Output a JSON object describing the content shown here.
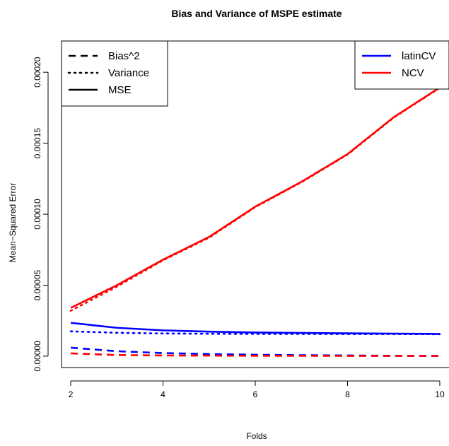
{
  "chart_data": {
    "type": "line",
    "title": "Bias and Variance of MSPE estimate",
    "xlabel": "Folds",
    "ylabel": "Mean−Squared Error",
    "xlim": [
      1.8,
      10.2
    ],
    "ylim": [
      -8e-06,
      0.000222
    ],
    "x": [
      2,
      3,
      4,
      5,
      6,
      7,
      8,
      9,
      10
    ],
    "x_ticks": [
      {
        "value": 2,
        "label": "2"
      },
      {
        "value": 4,
        "label": "4"
      },
      {
        "value": 6,
        "label": "6"
      },
      {
        "value": 8,
        "label": "8"
      },
      {
        "value": 10,
        "label": "10"
      }
    ],
    "y_ticks": [
      {
        "value": 0,
        "label": "0.00000"
      },
      {
        "value": 5e-05,
        "label": "0.00005"
      },
      {
        "value": 0.0001,
        "label": "0.00010"
      },
      {
        "value": 0.00015,
        "label": "0.00015"
      },
      {
        "value": 0.0002,
        "label": "0.00020"
      }
    ],
    "series": [
      {
        "method": "latinCV",
        "metric": "Bias^2",
        "color": "#0000ff",
        "dash": "dashed",
        "values": [
          6e-06,
          3.5e-06,
          2.2e-06,
          1.5e-06,
          1e-06,
          7e-07,
          5e-07,
          3e-07,
          2e-07
        ]
      },
      {
        "method": "latinCV",
        "metric": "Variance",
        "color": "#0000ff",
        "dash": "dotted",
        "values": [
          1.75e-05,
          1.65e-05,
          1.6e-05,
          1.58e-05,
          1.57e-05,
          1.57e-05,
          1.56e-05,
          1.56e-05,
          1.55e-05
        ]
      },
      {
        "method": "latinCV",
        "metric": "MSE",
        "color": "#0000ff",
        "dash": "solid",
        "values": [
          2.35e-05,
          2e-05,
          1.82e-05,
          1.73e-05,
          1.67e-05,
          1.64e-05,
          1.61e-05,
          1.59e-05,
          1.57e-05
        ]
      },
      {
        "method": "NCV",
        "metric": "Bias^2",
        "color": "#ff0000",
        "dash": "dashed",
        "values": [
          2e-06,
          8e-07,
          5e-07,
          4e-07,
          3e-07,
          3e-07,
          2e-07,
          2e-07,
          2e-07
        ]
      },
      {
        "method": "NCV",
        "metric": "Variance",
        "color": "#ff0000",
        "dash": "dotted",
        "values": [
          3.2e-05,
          4.9e-05,
          6.75e-05,
          8.35e-05,
          0.000105,
          0.0001225,
          0.000142,
          0.000168,
          0.000189
        ]
      },
      {
        "method": "NCV",
        "metric": "MSE",
        "color": "#ff0000",
        "dash": "solid",
        "values": [
          3.4e-05,
          5e-05,
          6.8e-05,
          8.4e-05,
          0.0001053,
          0.0001228,
          0.0001423,
          0.0001683,
          0.0001892
        ]
      }
    ],
    "legend_linetype": {
      "placement": "top-left",
      "entries": [
        {
          "label": "Bias^2",
          "dash": "dashed"
        },
        {
          "label": "Variance",
          "dash": "dotted"
        },
        {
          "label": "MSE",
          "dash": "solid"
        }
      ]
    },
    "legend_method": {
      "placement": "top-right",
      "entries": [
        {
          "label": "latinCV",
          "color": "#0000ff"
        },
        {
          "label": "NCV",
          "color": "#ff0000"
        }
      ]
    },
    "grid": false
  }
}
